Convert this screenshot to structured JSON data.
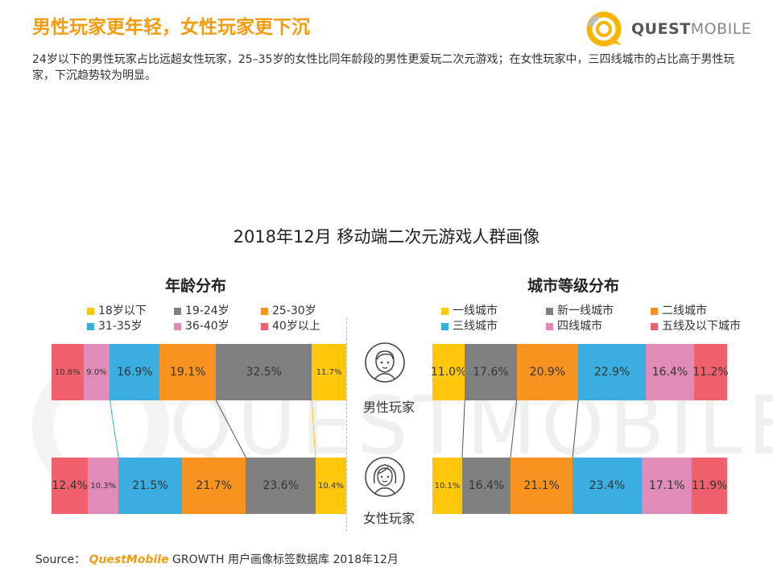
{
  "header": {
    "headline": "男性玩家更年轻，女性玩家更下沉",
    "subtitle": "24岁以下的男性玩家占比远超女性玩家，25–35岁的女性比同年龄段的男性更爱玩二次元游戏；在女性玩家中，三四线城市的占比高于男性玩家，下沉趋势较为明显。",
    "logo_bold": "QUEST",
    "logo_light": "MOBILE"
  },
  "watermark": "QUESTMOBILE",
  "chart_title": "2018年12月 移动端二次元游戏人群画像",
  "source": {
    "prefix": "Source：",
    "brand": "QuestMobile",
    "text": " GROWTH 用户画像标签数据库 2018年12月"
  },
  "chart_data": [
    {
      "type": "bar",
      "stacked": true,
      "orientation": "horizontal",
      "title": "年龄分布",
      "categories": [
        "男性玩家",
        "女性玩家"
      ],
      "legend_placement": "top",
      "series": [
        {
          "name": "40岁以上",
          "color": "#f0606d",
          "values": [
            10.8,
            12.4
          ]
        },
        {
          "name": "36-40岁",
          "color": "#e08bb8",
          "values": [
            9.0,
            10.3
          ]
        },
        {
          "name": "31-35岁",
          "color": "#3aaee0",
          "values": [
            16.9,
            21.5
          ]
        },
        {
          "name": "25-30岁",
          "color": "#f7931e",
          "values": [
            19.1,
            21.7
          ]
        },
        {
          "name": "19-24岁",
          "color": "#808080",
          "values": [
            32.5,
            23.6
          ]
        },
        {
          "name": "18岁以下",
          "color": "#ffc80b",
          "values": [
            11.7,
            10.4
          ]
        }
      ],
      "legend_order": [
        "18岁以下",
        "19-24岁",
        "25-30岁",
        "31-35岁",
        "36-40岁",
        "40岁以上"
      ]
    },
    {
      "type": "bar",
      "stacked": true,
      "orientation": "horizontal",
      "title": "城市等级分布",
      "categories": [
        "男性玩家",
        "女性玩家"
      ],
      "legend_placement": "top",
      "series": [
        {
          "name": "一线城市",
          "color": "#ffc80b",
          "values": [
            11.0,
            10.1
          ]
        },
        {
          "name": "新一线城市",
          "color": "#808080",
          "values": [
            17.6,
            16.4
          ]
        },
        {
          "name": "二线城市",
          "color": "#f7931e",
          "values": [
            20.9,
            21.1
          ]
        },
        {
          "name": "三线城市",
          "color": "#3aaee0",
          "values": [
            22.9,
            23.4
          ]
        },
        {
          "name": "四线城市",
          "color": "#e08bb8",
          "values": [
            16.4,
            17.1
          ]
        },
        {
          "name": "五线及以下城市",
          "color": "#f0606d",
          "values": [
            11.2,
            11.9
          ]
        }
      ],
      "legend_order": [
        "一线城市",
        "新一线城市",
        "二线城市",
        "三线城市",
        "四线城市",
        "五线及以下城市"
      ]
    }
  ]
}
